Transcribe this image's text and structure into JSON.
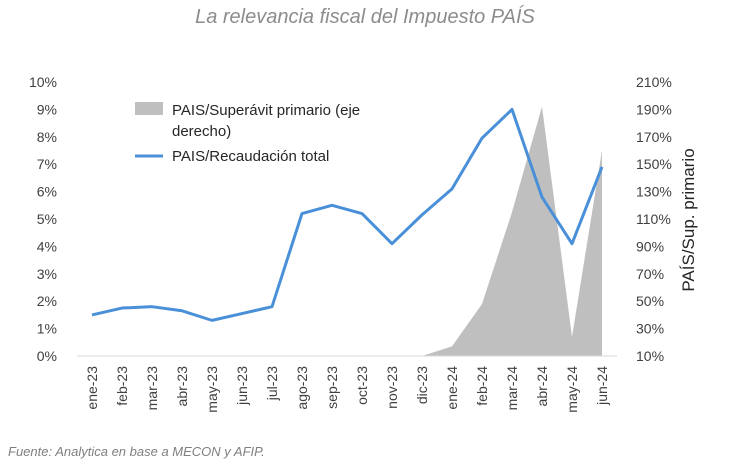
{
  "chart_data": {
    "type": "line",
    "title": "La relevancia fiscal del Impuesto PAÍS",
    "source": "Fuente: Analytica en base a MECON y AFIP.",
    "categories": [
      "ene-23",
      "feb-23",
      "mar-23",
      "abr-23",
      "may-23",
      "jun-23",
      "jul-23",
      "ago-23",
      "sep-23",
      "oct-23",
      "nov-23",
      "dic-23",
      "ene-24",
      "feb-24",
      "mar-24",
      "abr-24",
      "may-24",
      "jun-24"
    ],
    "series": [
      {
        "name": "PAIS/Recaudación total",
        "axis": "left",
        "type": "line",
        "color": "#4a90d9",
        "x": [
          "ene-23",
          "feb-23",
          "mar-23",
          "abr-23",
          "may-23",
          "jun-23",
          "jul-23",
          "ago-23",
          "sep-23",
          "oct-23",
          "nov-23",
          "dic-23",
          "ene-24",
          "feb-24",
          "mar-24",
          "abr-24",
          "may-24",
          "jun-24"
        ],
        "values": [
          1.5,
          1.75,
          1.8,
          1.65,
          1.3,
          1.55,
          1.8,
          5.2,
          5.5,
          5.2,
          4.1,
          5.15,
          6.1,
          7.95,
          9.0,
          5.8,
          4.1,
          6.9
        ]
      },
      {
        "name": "PAIS/Superávit primario (eje derecho)",
        "axis": "right",
        "type": "area",
        "color": "#bfbfbf",
        "x": [
          "dic-23",
          "ene-24",
          "feb-24",
          "mar-24",
          "abr-24",
          "may-24",
          "jun-24"
        ],
        "values": [
          10,
          17,
          48,
          115,
          192,
          24,
          160
        ]
      }
    ],
    "y_left": {
      "ylim": [
        0,
        10
      ],
      "ticks": [
        "0%",
        "1%",
        "2%",
        "3%",
        "4%",
        "5%",
        "6%",
        "7%",
        "8%",
        "9%",
        "10%"
      ]
    },
    "y_right": {
      "ylim": [
        10,
        210
      ],
      "ticks": [
        "10%",
        "30%",
        "50%",
        "70%",
        "90%",
        "110%",
        "130%",
        "150%",
        "170%",
        "190%",
        "210%"
      ],
      "label": "PAÍS/Sup. primario"
    },
    "legend": {
      "area_label_line1": "PAIS/Superávit primario (eje",
      "area_label_line2": "derecho)",
      "line_label": "PAIS/Recaudación total",
      "placement": "top-left"
    },
    "grid": false
  }
}
